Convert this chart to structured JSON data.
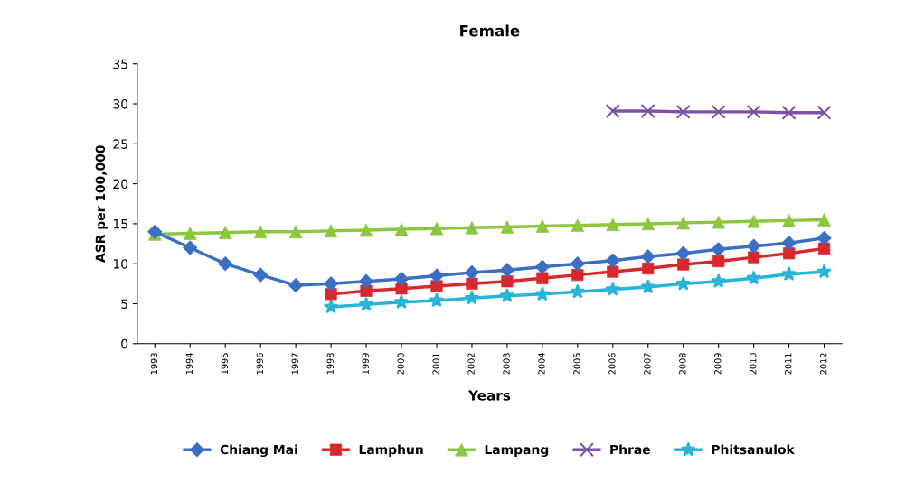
{
  "chart_data": {
    "type": "line",
    "title": "Female",
    "xlabel": "Years",
    "ylabel": "ASR per 100,000",
    "categories": [
      "1993",
      "1994",
      "1995",
      "1996",
      "1997",
      "1998",
      "1999",
      "2000",
      "2001",
      "2002",
      "2003",
      "2004",
      "2005",
      "2006",
      "2007",
      "2008",
      "2009",
      "2010",
      "2011",
      "2012"
    ],
    "series": [
      {
        "name": "Chiang Mai",
        "color": "#3a6fc4",
        "marker": "diamond",
        "values": [
          14.0,
          12.0,
          10.0,
          8.6,
          7.3,
          7.5,
          7.8,
          8.1,
          8.5,
          8.9,
          9.2,
          9.6,
          10.0,
          10.4,
          10.9,
          11.3,
          11.8,
          12.2,
          12.6,
          13.2
        ]
      },
      {
        "name": "Lamphun",
        "color": "#d8282e",
        "marker": "square",
        "values": [
          null,
          null,
          null,
          null,
          null,
          6.2,
          6.6,
          6.9,
          7.2,
          7.5,
          7.8,
          8.2,
          8.6,
          9.0,
          9.4,
          9.9,
          10.3,
          10.8,
          11.3,
          11.9
        ]
      },
      {
        "name": "Lampang",
        "color": "#8dc63f",
        "marker": "triangle",
        "values": [
          13.7,
          13.8,
          13.9,
          14.0,
          14.0,
          14.1,
          14.2,
          14.3,
          14.4,
          14.5,
          14.6,
          14.7,
          14.8,
          14.9,
          15.0,
          15.1,
          15.2,
          15.3,
          15.4,
          15.5
        ]
      },
      {
        "name": "Phrae",
        "color": "#7b52a8",
        "marker": "cross",
        "values": [
          null,
          null,
          null,
          null,
          null,
          null,
          null,
          null,
          null,
          null,
          null,
          null,
          null,
          29.1,
          29.1,
          29.0,
          29.0,
          29.0,
          28.9,
          28.9
        ]
      },
      {
        "name": "Phitsanulok",
        "color": "#28b4d8",
        "marker": "star",
        "values": [
          null,
          null,
          null,
          null,
          null,
          4.6,
          4.9,
          5.2,
          5.4,
          5.7,
          6.0,
          6.2,
          6.5,
          6.8,
          7.1,
          7.5,
          7.8,
          8.2,
          8.7,
          9.0
        ]
      }
    ],
    "ylim": [
      0,
      35
    ],
    "yticks": [
      0,
      5,
      10,
      15,
      20,
      25,
      30,
      35
    ],
    "grid": false,
    "legend": "bottom",
    "line_style": "solid"
  }
}
